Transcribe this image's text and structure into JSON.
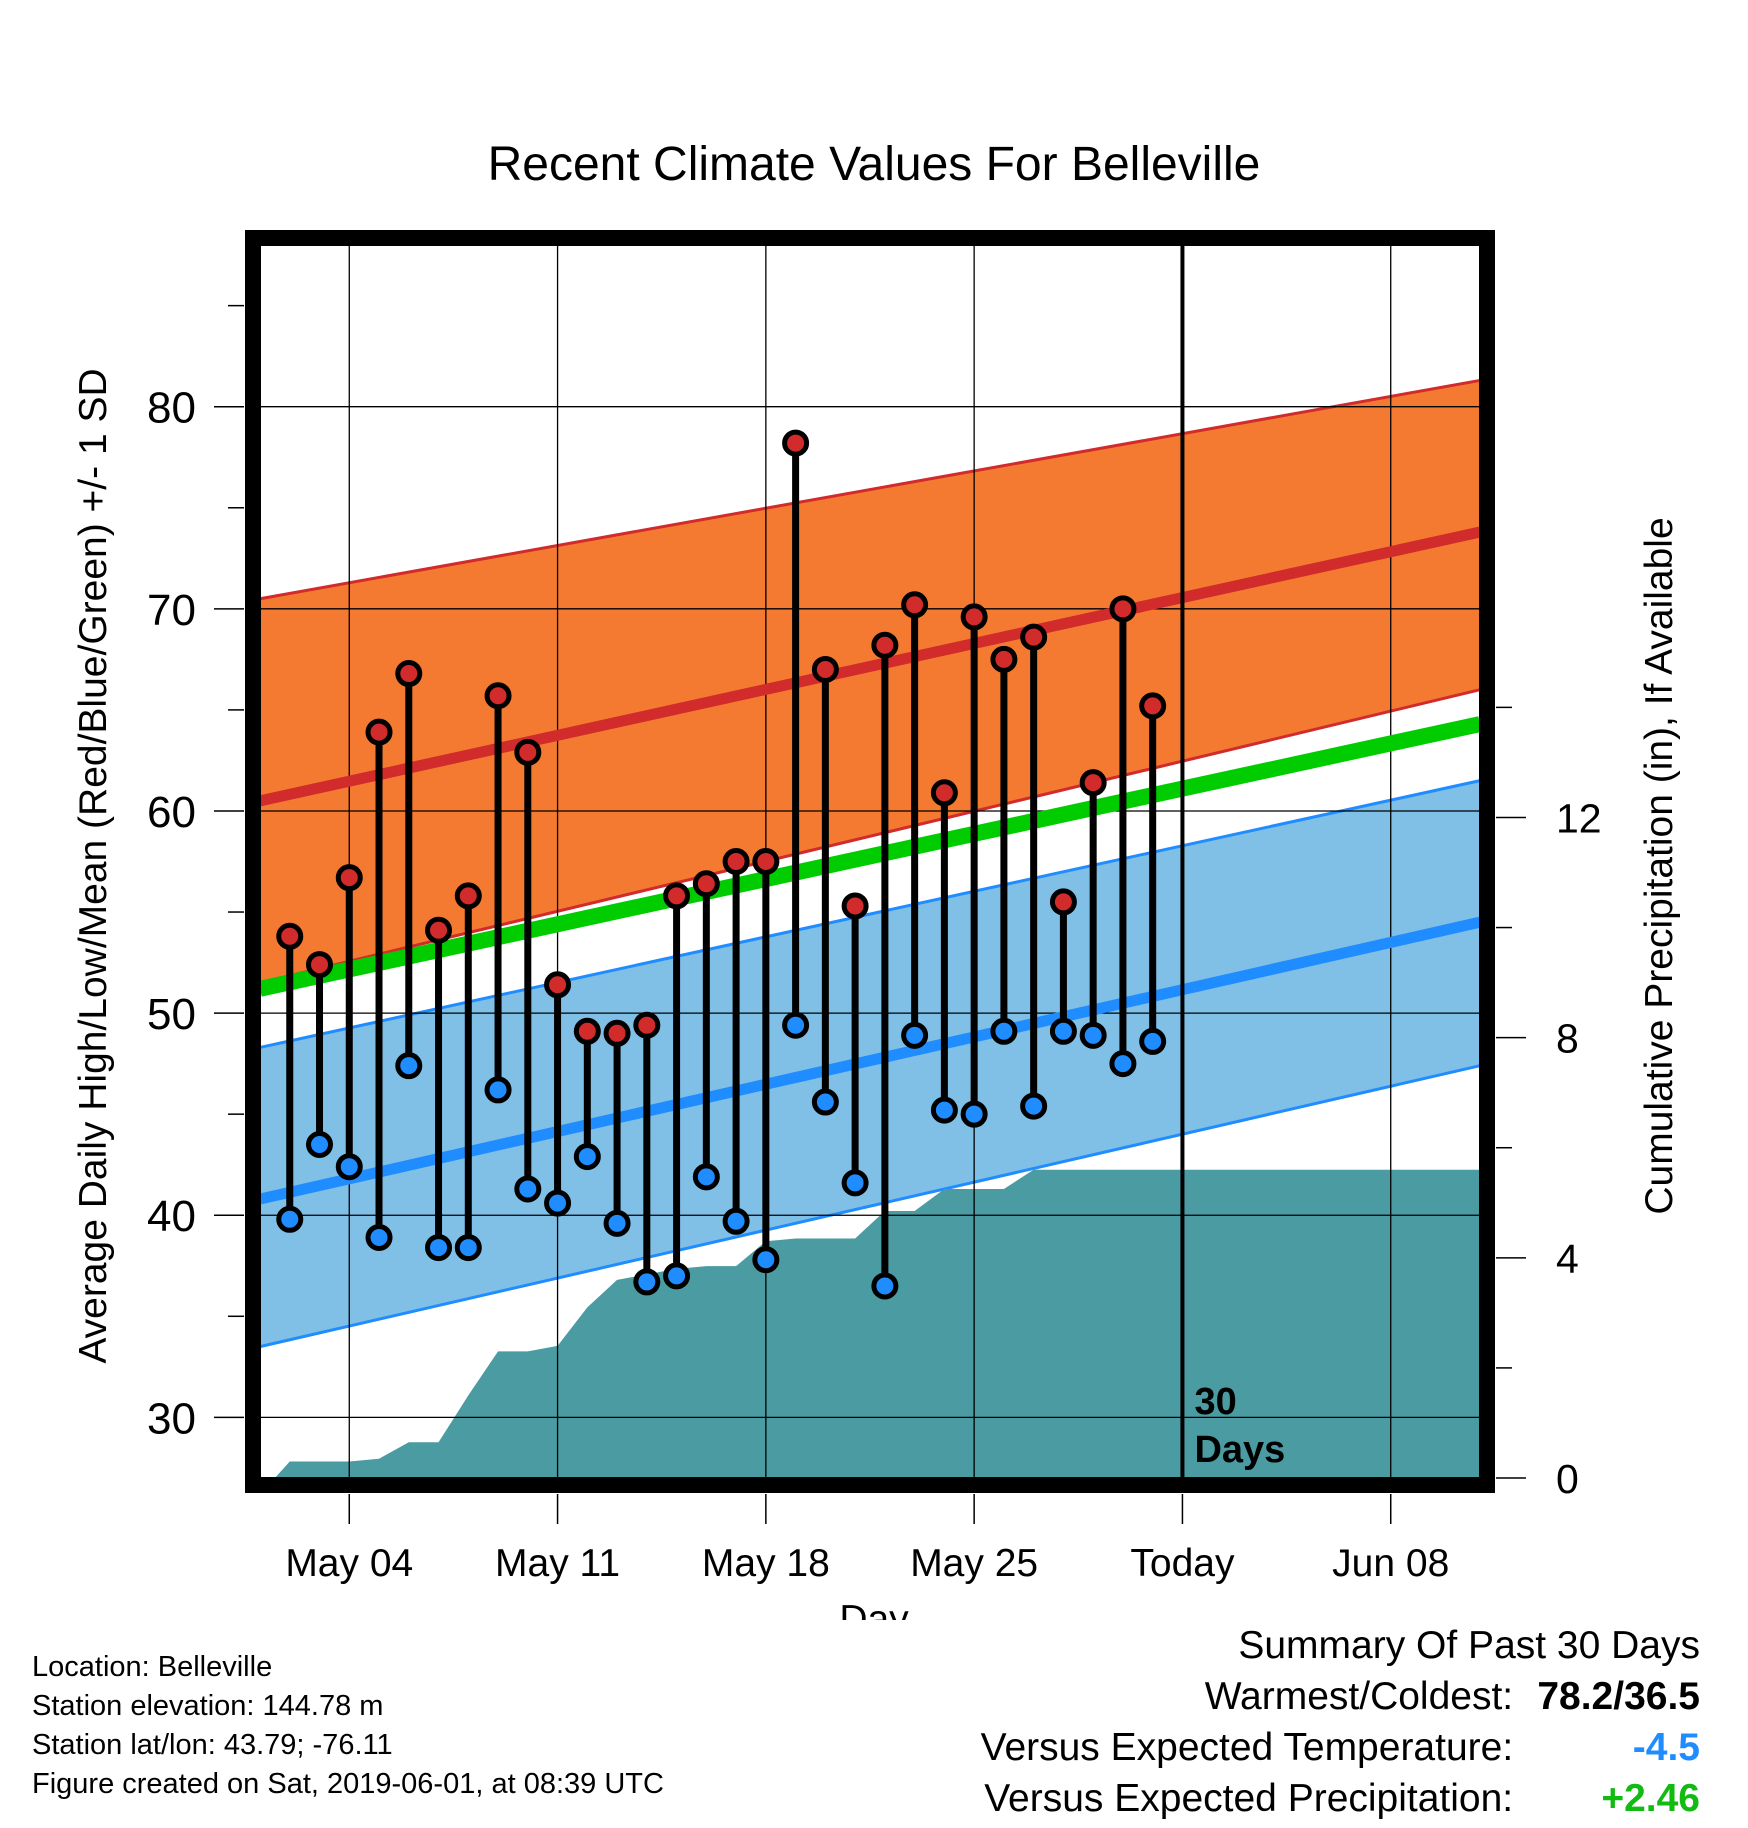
{
  "chart_data": {
    "type": "line",
    "title": "Recent Climate Values For Belleville",
    "xlabel": "Day",
    "ylabel": "Average Daily High/Low/Mean (Red/Blue/Green) +/- 1 SD",
    "y2label": "Cumulative Precipitation (in), If Available",
    "ylim": [
      27,
      88
    ],
    "y2lim": [
      0,
      22.4
    ],
    "yticks": [
      30,
      40,
      50,
      60,
      70,
      80
    ],
    "y2ticks": [
      0,
      4,
      8,
      12
    ],
    "xlim": [
      0,
      41
    ],
    "xticks": [
      {
        "day": 3,
        "label": "May 04"
      },
      {
        "day": 10,
        "label": "May 11"
      },
      {
        "day": 17,
        "label": "May 18"
      },
      {
        "day": 24,
        "label": "May 25"
      },
      {
        "day": 31,
        "label": "Today"
      },
      {
        "day": 38,
        "label": "Jun 08"
      }
    ],
    "normals": {
      "x": [
        0,
        41
      ],
      "high_mean": [
        60.5,
        73.8
      ],
      "high_upper": [
        70.5,
        81.3
      ],
      "high_lower": [
        51.5,
        66.0
      ],
      "low_mean": [
        40.8,
        54.5
      ],
      "low_upper": [
        48.3,
        61.5
      ],
      "low_lower": [
        33.5,
        47.4
      ],
      "overall_mean": [
        51.2,
        64.3
      ]
    },
    "daily": {
      "day": [
        1,
        2,
        3,
        4,
        5,
        6,
        7,
        8,
        9,
        10,
        11,
        12,
        13,
        14,
        15,
        16,
        17,
        18,
        19,
        20,
        21,
        22,
        23,
        24,
        25,
        26,
        27,
        28,
        29,
        30
      ],
      "high": [
        53.8,
        52.4,
        56.7,
        63.9,
        66.8,
        54.1,
        55.8,
        65.7,
        62.9,
        51.4,
        49.1,
        49.0,
        49.4,
        55.8,
        56.4,
        57.5,
        57.5,
        78.2,
        67.0,
        55.3,
        68.2,
        70.2,
        60.9,
        69.6,
        67.5,
        68.6,
        55.5,
        61.4,
        70.0,
        65.2
      ],
      "low": [
        39.8,
        43.5,
        42.4,
        38.9,
        47.4,
        38.4,
        38.4,
        46.2,
        41.3,
        40.6,
        42.9,
        39.6,
        36.7,
        37.0,
        41.9,
        39.7,
        37.8,
        49.4,
        45.6,
        41.6,
        36.5,
        48.9,
        45.2,
        45.0,
        49.1,
        45.4,
        49.1,
        48.9,
        47.5,
        48.6
      ]
    },
    "precip": {
      "x": [
        0.5,
        1,
        2,
        3,
        4,
        5,
        6,
        7,
        8,
        9,
        10,
        11,
        12,
        13,
        14,
        15,
        16,
        17,
        18,
        19,
        20,
        21,
        22,
        23,
        24,
        25,
        26,
        27,
        28,
        29,
        30,
        41
      ],
      "cumulative": [
        0.0,
        0.3,
        0.3,
        0.3,
        0.35,
        0.65,
        0.65,
        1.5,
        2.3,
        2.3,
        2.4,
        3.1,
        3.6,
        3.7,
        3.8,
        3.85,
        3.85,
        4.3,
        4.35,
        4.35,
        4.35,
        4.85,
        4.85,
        5.25,
        5.25,
        5.25,
        5.6,
        5.6,
        5.6,
        5.6,
        5.6,
        5.6
      ]
    },
    "today_day": 31,
    "today_annotation": [
      "30",
      "Days"
    ],
    "grid": true,
    "colors": {
      "high_band": "#f47a32",
      "high_line": "#d12b2b",
      "low_band": "#80bfe6",
      "low_line": "#1f8cff",
      "mean_line": "#00cc00",
      "precip_fill": "#4a9ba2",
      "high_marker": "#d12b2b",
      "low_marker": "#1f8cff"
    }
  },
  "info": {
    "location": "Location: Belleville",
    "elevation": "Station elevation: 144.78 m",
    "latlon": "Station lat/lon: 43.79; -76.11",
    "created": "Figure created on Sat, 2019-06-01, at 08:39 UTC"
  },
  "summary": {
    "heading": "Summary Of Past 30 Days",
    "warm_cold_label": "Warmest/Coldest:",
    "warm_cold_value": "78.2/36.5",
    "temp_label": "Versus Expected Temperature:",
    "temp_value": "-4.5",
    "temp_color": "#1f8cff",
    "precip_label": "Versus Expected Precipitation:",
    "precip_value": "+2.46",
    "precip_color": "#11bb11"
  }
}
